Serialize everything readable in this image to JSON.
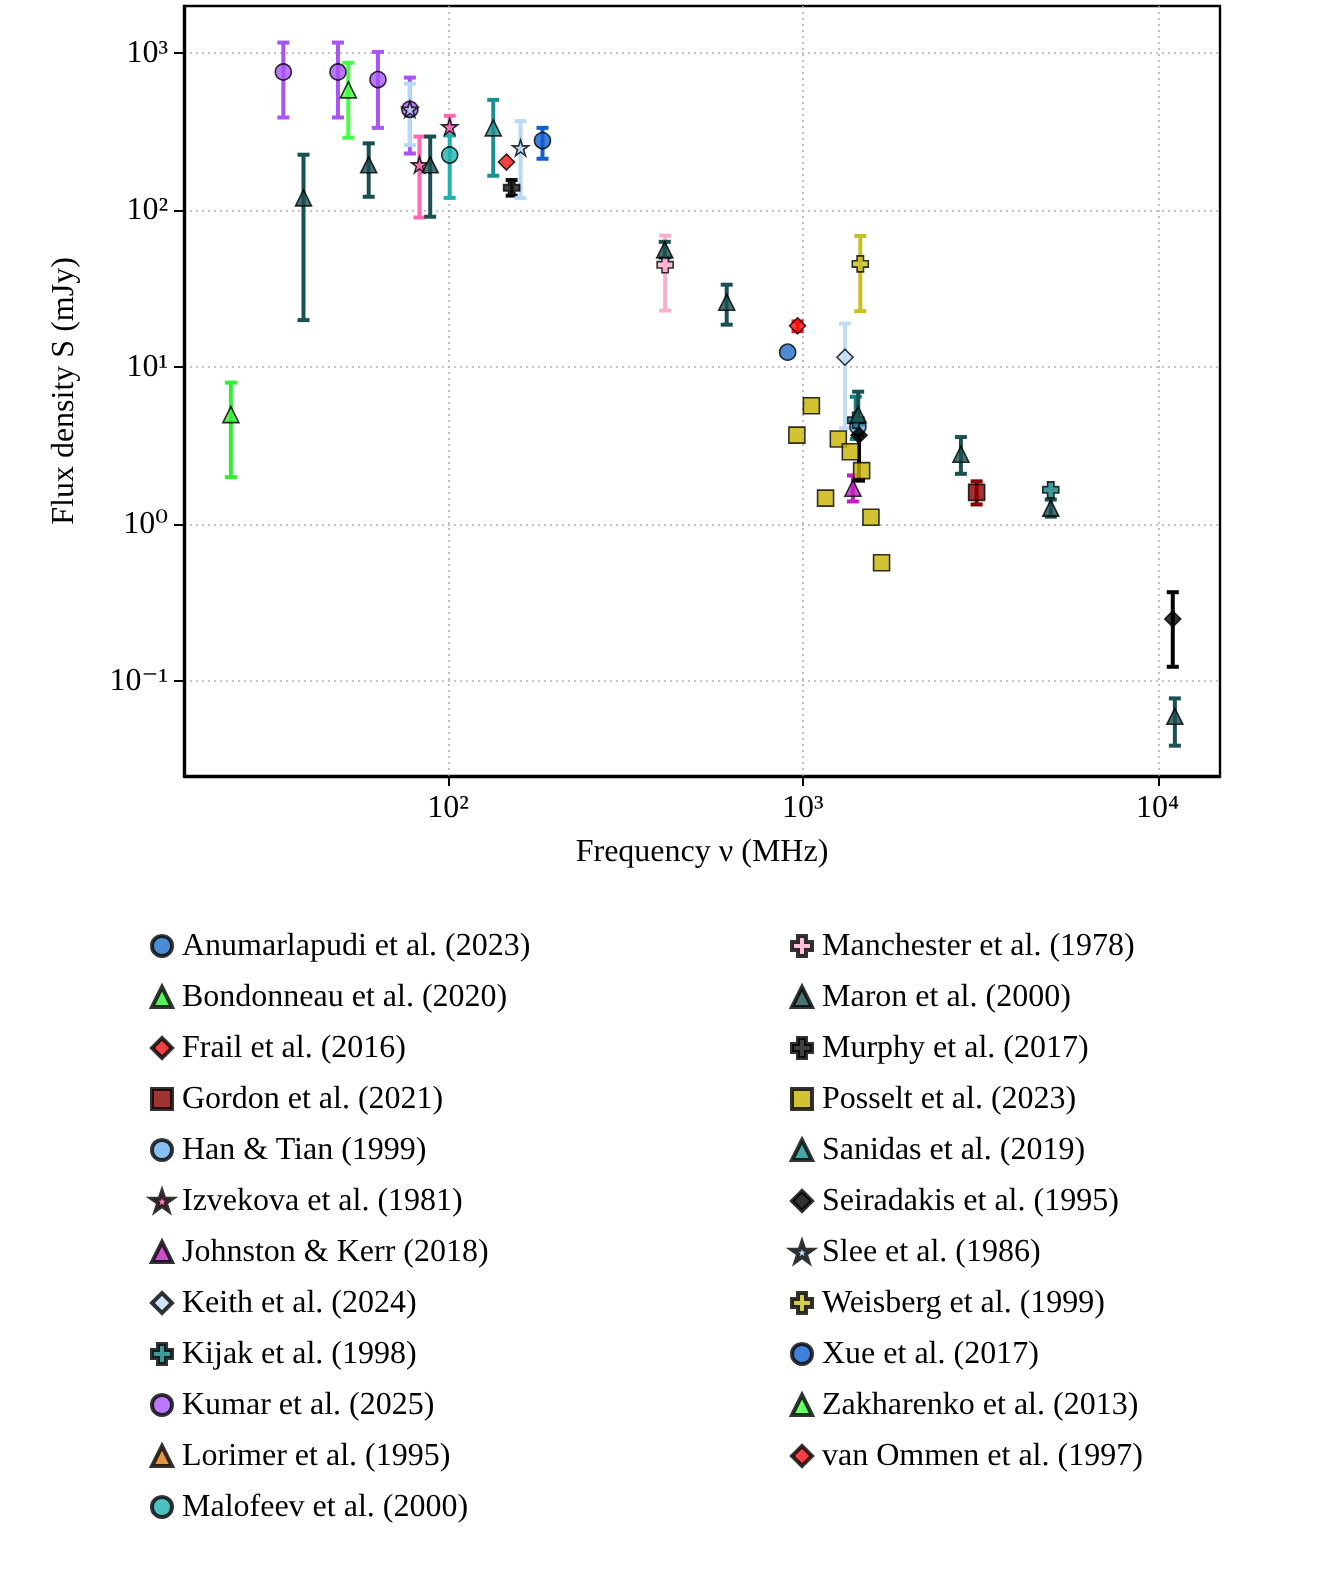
{
  "chart_data": {
    "type": "scatter",
    "xlabel": "Frequency ν (MHz)",
    "ylabel": "Flux density S (mJy)",
    "log": "xy",
    "grid": true,
    "legend": "bottom",
    "xlim": [
      18,
      15000
    ],
    "ylim": [
      0.025,
      2000
    ],
    "xticks": [
      {
        "value": 100,
        "label": "10²"
      },
      {
        "value": 1000,
        "label": "10³"
      },
      {
        "value": 10000,
        "label": "10⁴"
      }
    ],
    "yticks": [
      {
        "value": 0.1,
        "label": "10⁻¹"
      },
      {
        "value": 1,
        "label": "10⁰"
      },
      {
        "value": 10,
        "label": "10¹"
      },
      {
        "value": 100,
        "label": "10²"
      },
      {
        "value": 1000,
        "label": "10³"
      }
    ],
    "series": [
      {
        "name": "Anumarlapudi et al. (2023)",
        "color": "#1f6fc8",
        "marker": "circle",
        "x": [
          906
        ],
        "values": [
          12.5
        ]
      },
      {
        "name": "Bondonneau et al. (2020)",
        "color": "#33ee33",
        "marker": "triangle",
        "x": [
          24.4
        ],
        "values": [
          5
        ],
        "errors": [
          [
            2,
            8
          ]
        ]
      },
      {
        "name": "Frail et al. (2016)",
        "color": "#ee1111",
        "marker": "diamond",
        "x": [
          146
        ],
        "values": [
          203
        ]
      },
      {
        "name": "Gordon et al. (2021)",
        "color": "#8b0000",
        "marker": "square",
        "x": [
          3090
        ],
        "values": [
          1.6
        ],
        "errors": [
          [
            1.34,
            1.88
          ]
        ]
      },
      {
        "name": "Han & Tian (1999)",
        "color": "#6ab0f0",
        "marker": "circle",
        "x": [
          1430
        ],
        "values": [
          4.2
        ]
      },
      {
        "name": "Izvekova et al. (1981)",
        "color": "#ff69b4",
        "marker": "star",
        "x": [
          83,
          101
        ],
        "values": [
          195,
          340
        ],
        "errors": [
          [
            90,
            295
          ],
          [
            300,
            400
          ]
        ]
      },
      {
        "name": "Johnston & Kerr (2018)",
        "color": "#c020c0",
        "marker": "triangle",
        "x": [
          1384
        ],
        "values": [
          1.7
        ],
        "errors": [
          [
            1.4,
            2.05
          ]
        ]
      },
      {
        "name": "Keith et al. (2024)",
        "color": "#c0dcf8",
        "marker": "diamond",
        "x": [
          1315
        ],
        "values": [
          11.6
        ],
        "errors": [
          [
            4.1,
            19
          ]
        ]
      },
      {
        "name": "Kijak et al. (1998)",
        "color": "#108080",
        "marker": "cross",
        "x": [
          1410,
          5000
        ],
        "values": [
          4.6,
          1.66
        ],
        "errors": [
          [
            3.5,
            6.5
          ],
          null
        ]
      },
      {
        "name": "Kumar et al. (2025)",
        "color": "#a855f7",
        "marker": "circle",
        "x": [
          34.3,
          48.9,
          63.4,
          78
        ],
        "values": [
          760,
          760,
          680,
          440
        ],
        "errors": [
          [
            390,
            1170
          ],
          [
            390,
            1170
          ],
          [
            335,
            1020
          ],
          [
            230,
            700
          ]
        ]
      },
      {
        "name": "Lorimer et al. (1995)",
        "color": "#e07b10",
        "marker": "triangle"
      },
      {
        "name": "Malofeev et al. (2000)",
        "color": "#20b0b0",
        "marker": "circle",
        "x": [
          101
        ],
        "values": [
          225
        ],
        "errors": [
          [
            120,
            300
          ]
        ]
      },
      {
        "name": "Manchester et al. (1978)",
        "color": "#f8b0d0",
        "marker": "cross",
        "x": [
          409
        ],
        "values": [
          45
        ],
        "errors": [
          [
            23,
            69
          ]
        ]
      },
      {
        "name": "Maron et al. (2000)",
        "color": "#1a5050",
        "marker": "triangle",
        "x": [
          39.1,
          59.7,
          89,
          408,
          610,
          1432,
          2790,
          5000,
          11190
        ],
        "values": [
          120,
          195,
          195,
          56,
          26,
          5,
          2.8,
          1.27,
          0.06
        ],
        "errors": [
          [
            20,
            226
          ],
          [
            122,
            267
          ],
          [
            91,
            295
          ],
          [
            50,
            63
          ],
          [
            18.7,
            33.6
          ],
          [
            3.7,
            7
          ],
          [
            2.1,
            3.6
          ],
          [
            1.12,
            1.44
          ],
          [
            0.039,
            0.078
          ]
        ]
      },
      {
        "name": "Murphy et al. (2017)",
        "color": "#111111",
        "marker": "cross",
        "x": [
          151
        ],
        "values": [
          139
        ],
        "errors": [
          [
            124,
            156
          ]
        ]
      },
      {
        "name": "Posselt et al. (2023)",
        "color": "#c8b400",
        "marker": "square",
        "x": [
          1057,
          962,
          1259,
          1361,
          1465,
          1159,
          1556,
          1667
        ],
        "values": [
          5.7,
          3.7,
          3.5,
          2.9,
          2.2,
          1.47,
          1.11,
          0.57
        ]
      },
      {
        "name": "Sanidas et al. (2019)",
        "color": "#1a9090",
        "marker": "triangle",
        "x": [
          134
        ],
        "values": [
          335
        ],
        "errors": [
          [
            166,
            505
          ]
        ]
      },
      {
        "name": "Seiradakis et al. (1995)",
        "color": "#000000",
        "marker": "diamond",
        "x": [
          1440,
          11040
        ],
        "values": [
          3.7,
          0.25
        ],
        "errors": [
          [
            1.9,
            4.3
          ],
          [
            0.124,
            0.37
          ]
        ]
      },
      {
        "name": "Slee et al. (1986)",
        "color": "#b8d8f8",
        "marker": "star",
        "x": [
          78,
          160
        ],
        "values": [
          440,
          250
        ],
        "errors": [
          [
            260,
            640
          ],
          [
            120,
            370
          ]
        ]
      },
      {
        "name": "Weisberg et al. (1999)",
        "color": "#c8c020",
        "marker": "cross",
        "x": [
          1452
        ],
        "values": [
          45.6
        ],
        "errors": [
          [
            22.8,
            68.7
          ]
        ]
      },
      {
        "name": "Xue et al. (2017)",
        "color": "#1060d0",
        "marker": "circle",
        "x": [
          184.5
        ],
        "values": [
          278
        ],
        "errors": [
          [
            213,
            335
          ]
        ]
      },
      {
        "name": "Zakharenko et al. (2013)",
        "color": "#44ff44",
        "marker": "triangle",
        "x": [
          52.3
        ],
        "values": [
          585
        ],
        "errors": [
          [
            290,
            870
          ]
        ]
      },
      {
        "name": "van Ommen et al. (1997)",
        "color": "#ff1010",
        "marker": "diamond",
        "x": [
          966
        ],
        "values": [
          18.4
        ],
        "errors": [
          [
            17,
            19.6
          ]
        ]
      }
    ]
  }
}
